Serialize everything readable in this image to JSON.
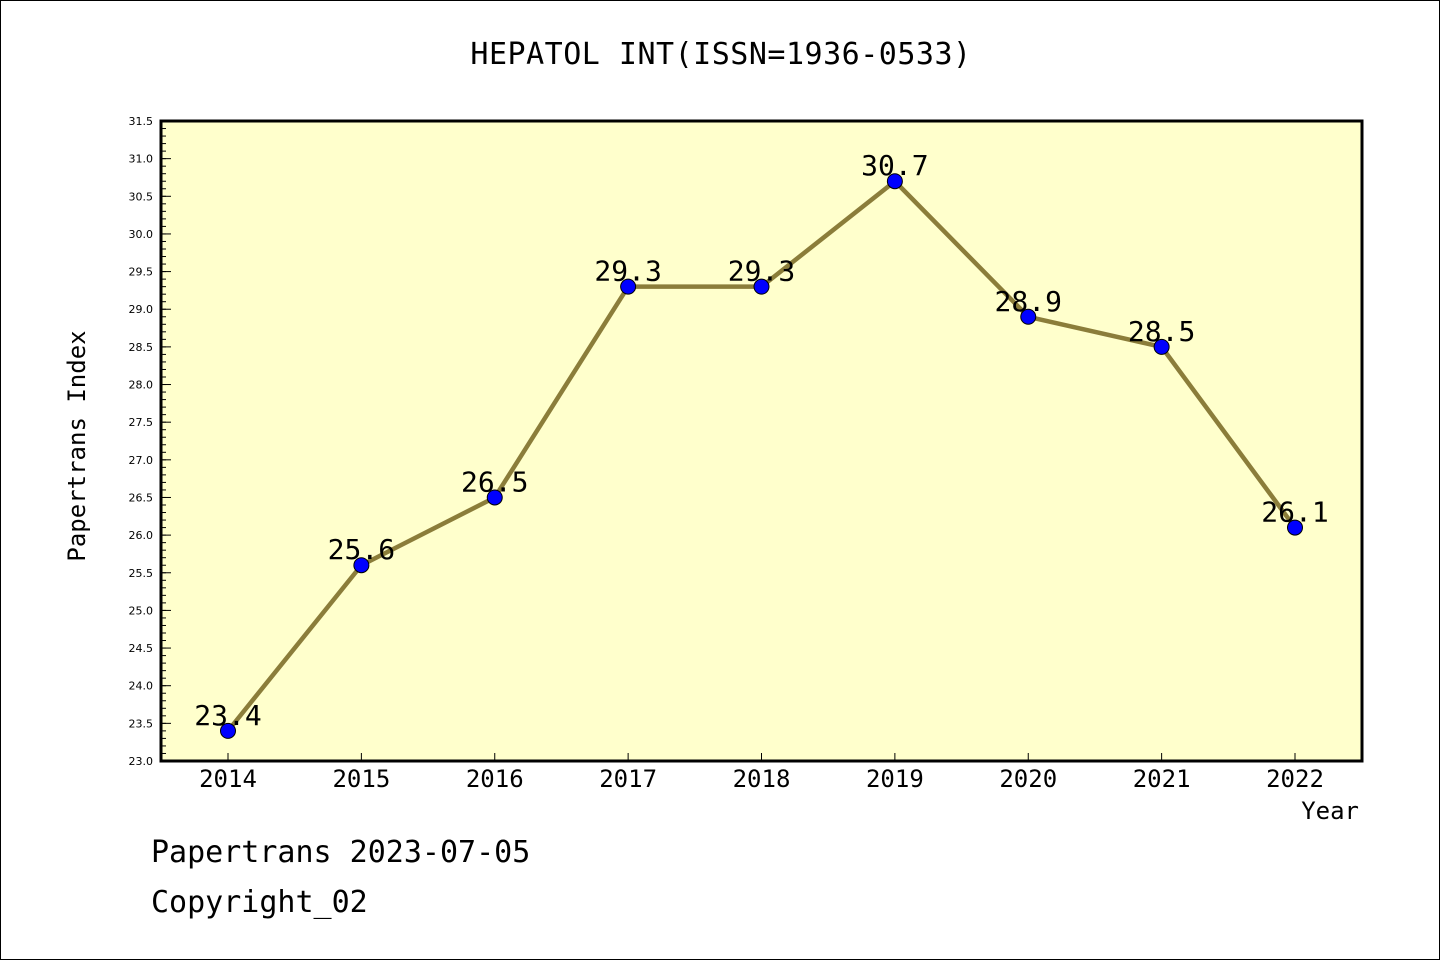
{
  "chart_data": {
    "type": "line",
    "title": "HEPATOL INT(ISSN=1936-0533)",
    "xlabel": "Year",
    "ylabel": "Papertrans Index",
    "categories": [
      "2014",
      "2015",
      "2016",
      "2017",
      "2018",
      "2019",
      "2020",
      "2021",
      "2022"
    ],
    "series": [
      {
        "values": [
          23.4,
          25.6,
          26.5,
          29.3,
          29.3,
          30.7,
          28.9,
          28.5,
          26.1
        ]
      }
    ],
    "data_labels": [
      "23.4",
      "25.6",
      "26.5",
      "29.3",
      "29.3",
      "30.7",
      "28.9",
      "28.5",
      "26.1"
    ],
    "ylim": [
      23.0,
      31.5
    ],
    "y_ticks": [
      "23.0",
      "23.5",
      "24.0",
      "24.5",
      "25.0",
      "25.5",
      "26.0",
      "26.5",
      "27.0",
      "27.5",
      "28.0",
      "28.5",
      "29.0",
      "29.5",
      "30.0",
      "30.5",
      "31.0",
      "31.5"
    ],
    "grid": false,
    "colors": {
      "plot_background": "#ffffcc",
      "line": "#8b7d3a",
      "marker": "#0000ff"
    }
  },
  "footer": {
    "line1": "Papertrans 2023-07-05",
    "line2": "Copyright_02"
  }
}
